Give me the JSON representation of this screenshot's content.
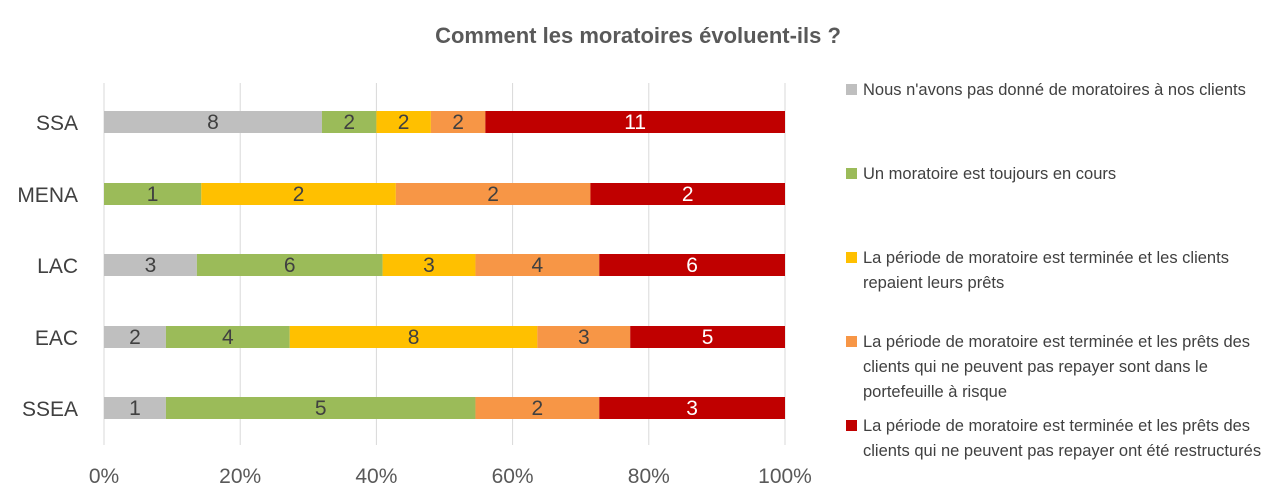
{
  "chart_data": {
    "type": "bar",
    "orientation": "horizontal",
    "stacked": "percent",
    "title": "Comment les moratoires évoluent-ils ?",
    "categories": [
      "SSA",
      "MENA",
      "LAC",
      "EAC",
      "SSEA"
    ],
    "xlim": [
      0,
      100
    ],
    "x_ticks": [
      "0%",
      "20%",
      "40%",
      "60%",
      "80%",
      "100%"
    ],
    "grid": "vertical",
    "legend_position": "right",
    "series": [
      {
        "name": "Nous n'avons pas donné de moratoires à nos clients",
        "color": "#BFBFBF",
        "values": [
          8,
          0,
          3,
          2,
          1
        ]
      },
      {
        "name": "Un moratoire est toujours en cours",
        "color": "#9BBB59",
        "values": [
          2,
          1,
          6,
          4,
          5
        ]
      },
      {
        "name": "La période de moratoire est terminée et les clients repaient leurs prêts",
        "color": "#FFC000",
        "values": [
          2,
          2,
          3,
          8,
          0
        ]
      },
      {
        "name": "La période de moratoire est terminée et les prêts des clients qui ne peuvent pas repayer sont dans le portefeuille à risque",
        "color": "#F79646",
        "values": [
          2,
          2,
          4,
          3,
          2
        ]
      },
      {
        "name": "La période de moratoire est terminée et les prêts des clients qui ne peuvent pas repayer ont été restructurés",
        "color": "#C00000",
        "values": [
          11,
          2,
          6,
          5,
          3
        ]
      }
    ],
    "data_label_colors": [
      "#404040",
      "#404040",
      "#404040",
      "#404040",
      "#ffffff"
    ]
  }
}
